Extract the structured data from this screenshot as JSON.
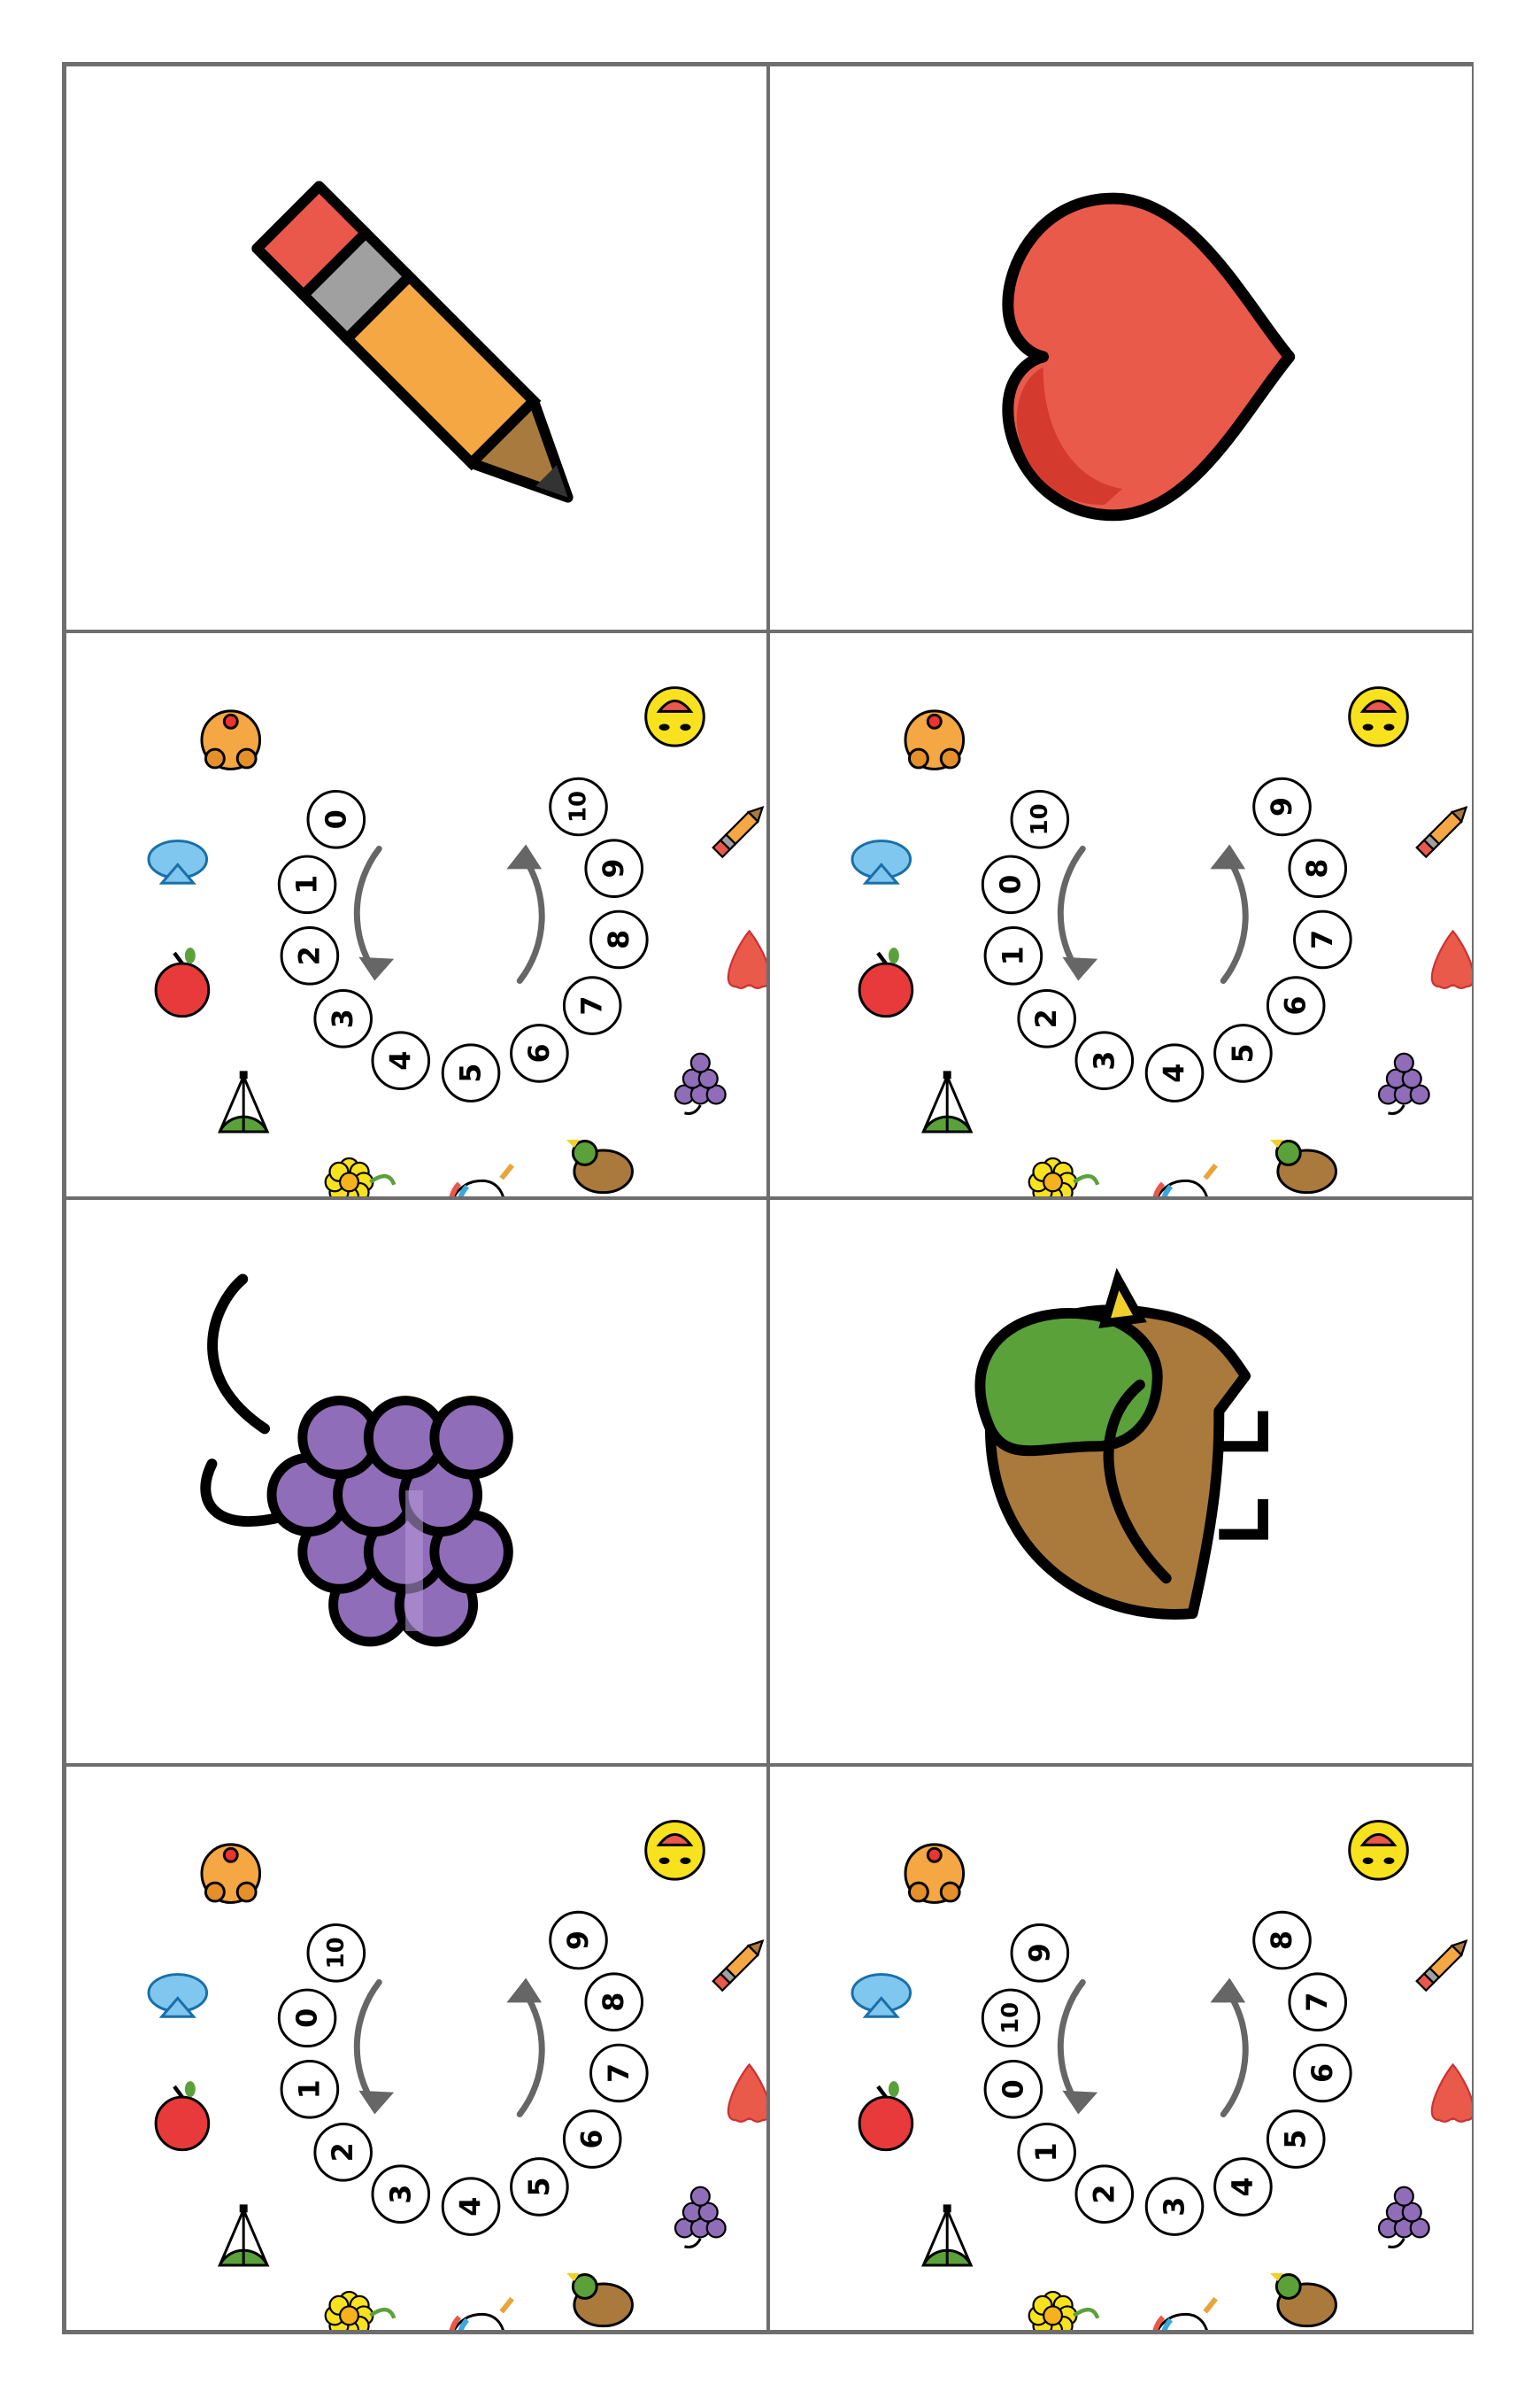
{
  "sheet": {
    "cards": [
      {
        "kind": "picture",
        "icon": "pencil-icon"
      },
      {
        "kind": "picture",
        "icon": "heart-icon"
      },
      {
        "kind": "wheel",
        "labels": [
          "0",
          "1",
          "2",
          "3",
          "4",
          "5",
          "6",
          "7",
          "8",
          "9",
          "10"
        ]
      },
      {
        "kind": "wheel",
        "labels": [
          "10",
          "0",
          "1",
          "2",
          "3",
          "4",
          "5",
          "6",
          "7",
          "8",
          "9"
        ]
      },
      {
        "kind": "picture",
        "icon": "grapes-icon"
      },
      {
        "kind": "picture",
        "icon": "duck-icon"
      },
      {
        "kind": "wheel",
        "labels": [
          "10",
          "0",
          "1",
          "2",
          "3",
          "4",
          "5",
          "6",
          "7",
          "8",
          "9"
        ]
      },
      {
        "kind": "wheel",
        "labels": [
          "9",
          "10",
          "0",
          "1",
          "2",
          "3",
          "4",
          "5",
          "6",
          "7",
          "8"
        ]
      }
    ],
    "wheel_icons": [
      "dog-icon",
      "fish-icon",
      "apple-icon",
      "parachute-icon",
      "flower-icon",
      "unicorn-icon",
      "duck-icon",
      "grapes-icon",
      "heart-icon",
      "pencil-icon",
      "smiley-icon"
    ],
    "colors": {
      "pencil_body": "#f4a742",
      "pencil_eraser": "#e9584b",
      "pencil_band": "#a0a0a0",
      "pencil_wood": "#a87a3d",
      "heart": "#ea5a4a",
      "heart_shade": "#d53a2f",
      "grapes": "#8f6db8",
      "grapes_light": "#b497d6",
      "duck_body": "#a97a3c",
      "duck_head": "#5ba13a",
      "duck_beak": "#f2d02b",
      "arrow": "#666666",
      "outline": "#000000"
    }
  }
}
